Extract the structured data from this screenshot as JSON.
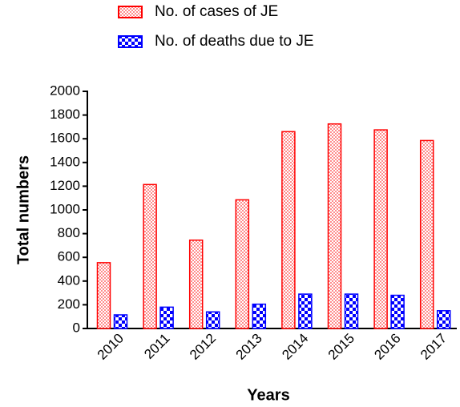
{
  "chart_data": {
    "type": "bar",
    "xlabel": "Years",
    "ylabel": "Total numbers",
    "categories": [
      "2010",
      "2011",
      "2012",
      "2013",
      "2014",
      "2015",
      "2016",
      "2017"
    ],
    "series": [
      {
        "name": "No. of cases of JE",
        "color": "#ff0000",
        "values": [
          555,
          1214,
          745,
          1085,
          1660,
          1725,
          1675,
          1585
        ]
      },
      {
        "name": "No. of deaths due to JE",
        "color": "#0000ff",
        "values": [
          115,
          180,
          140,
          205,
          290,
          290,
          280,
          150
        ]
      }
    ],
    "ylim": [
      0,
      2000
    ],
    "yticks": [
      0,
      200,
      400,
      600,
      800,
      1000,
      1200,
      1400,
      1600,
      1800,
      2000
    ],
    "legend": "top"
  }
}
